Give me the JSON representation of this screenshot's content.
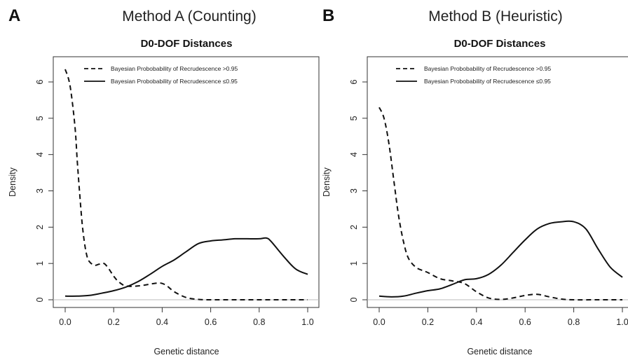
{
  "panels": [
    {
      "letter": "A",
      "heading": "Method A (Counting)",
      "chart_data": {
        "type": "line",
        "title": "D0-DOF Distances",
        "xlabel": "Genetic distance",
        "ylabel": "Density",
        "xlim": [
          0,
          1
        ],
        "ylim": [
          0,
          6.4
        ],
        "xticks": [
          "0.0",
          "0.2",
          "0.4",
          "0.6",
          "0.8",
          "1.0"
        ],
        "yticks": [
          "0",
          "1",
          "2",
          "3",
          "4",
          "5",
          "6"
        ],
        "legend_position": "top-center",
        "series": [
          {
            "name": "Bayesian Probobability of Recrudescence >0.95",
            "style": "dashed",
            "x": [
              0.0,
              0.02,
              0.04,
              0.05,
              0.06,
              0.07,
              0.08,
              0.09,
              0.1,
              0.12,
              0.14,
              0.16,
              0.18,
              0.2,
              0.22,
              0.25,
              0.3,
              0.35,
              0.38,
              0.4,
              0.42,
              0.45,
              0.5,
              0.55,
              0.6,
              0.7,
              0.8,
              0.9,
              1.0
            ],
            "y": [
              6.35,
              5.9,
              4.8,
              3.8,
              2.9,
              2.1,
              1.55,
              1.2,
              1.05,
              0.95,
              0.98,
              1.0,
              0.85,
              0.65,
              0.5,
              0.38,
              0.38,
              0.43,
              0.46,
              0.45,
              0.38,
              0.22,
              0.06,
              0.01,
              0.0,
              0.0,
              0.0,
              0.0,
              0.0
            ]
          },
          {
            "name": "Bayesian Probobability of Recrudescence ≤0.95",
            "style": "solid",
            "x": [
              0.0,
              0.05,
              0.1,
              0.15,
              0.2,
              0.25,
              0.3,
              0.35,
              0.4,
              0.45,
              0.5,
              0.55,
              0.6,
              0.65,
              0.7,
              0.75,
              0.8,
              0.83,
              0.85,
              0.9,
              0.95,
              1.0
            ],
            "y": [
              0.1,
              0.1,
              0.12,
              0.18,
              0.25,
              0.35,
              0.5,
              0.7,
              0.92,
              1.1,
              1.33,
              1.55,
              1.62,
              1.65,
              1.68,
              1.68,
              1.68,
              1.7,
              1.6,
              1.2,
              0.85,
              0.7
            ]
          }
        ]
      }
    },
    {
      "letter": "B",
      "heading": "Method B (Heuristic)",
      "chart_data": {
        "type": "line",
        "title": "D0-DOF Distances",
        "xlabel": "Genetic distance",
        "ylabel": "Density",
        "xlim": [
          0,
          1
        ],
        "ylim": [
          0,
          6.4
        ],
        "xticks": [
          "0.0",
          "0.2",
          "0.4",
          "0.6",
          "0.8",
          "1.0"
        ],
        "yticks": [
          "0",
          "1",
          "2",
          "3",
          "4",
          "5",
          "6"
        ],
        "legend_position": "top-center",
        "series": [
          {
            "name": "Bayesian Probobability of Recrudescence >0.95",
            "style": "dashed",
            "x": [
              0.0,
              0.02,
              0.04,
              0.06,
              0.08,
              0.1,
              0.12,
              0.15,
              0.18,
              0.2,
              0.25,
              0.3,
              0.35,
              0.4,
              0.45,
              0.5,
              0.55,
              0.6,
              0.65,
              0.7,
              0.75,
              0.8,
              0.9,
              1.0
            ],
            "y": [
              5.3,
              5.0,
              4.3,
              3.3,
              2.3,
              1.6,
              1.15,
              0.9,
              0.8,
              0.75,
              0.58,
              0.52,
              0.45,
              0.22,
              0.05,
              0.01,
              0.05,
              0.12,
              0.15,
              0.08,
              0.02,
              0.0,
              0.0,
              0.0
            ]
          },
          {
            "name": "Bayesian Probobability of Recrudescence ≤0.95",
            "style": "solid",
            "x": [
              0.0,
              0.05,
              0.1,
              0.15,
              0.2,
              0.25,
              0.3,
              0.35,
              0.4,
              0.45,
              0.5,
              0.55,
              0.6,
              0.65,
              0.7,
              0.75,
              0.8,
              0.85,
              0.9,
              0.95,
              1.0
            ],
            "y": [
              0.1,
              0.08,
              0.1,
              0.18,
              0.25,
              0.3,
              0.42,
              0.55,
              0.58,
              0.7,
              0.95,
              1.3,
              1.65,
              1.95,
              2.1,
              2.15,
              2.15,
              1.95,
              1.4,
              0.9,
              0.62
            ]
          }
        ]
      }
    }
  ]
}
